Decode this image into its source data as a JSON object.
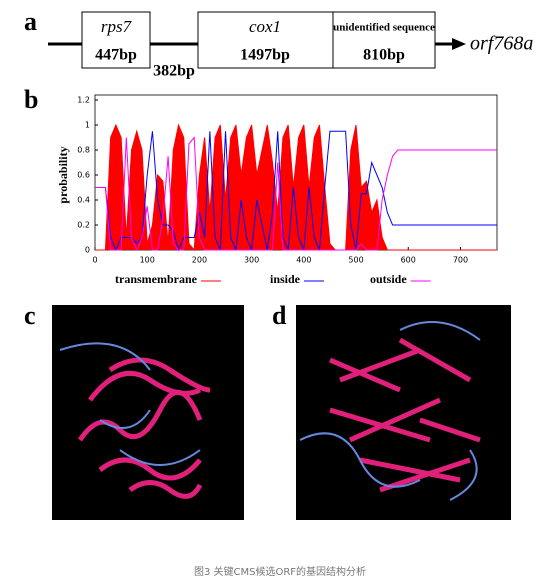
{
  "panel_labels": [
    "a",
    "b",
    "c",
    "d"
  ],
  "gene_map": {
    "genes": [
      {
        "name": "rps7",
        "length": "447bp"
      },
      {
        "name": "cox1",
        "length": "1497bp"
      },
      {
        "name": "unidentified sequence",
        "length": "810bp"
      }
    ],
    "spacer": "382bp",
    "orf": "orf768a"
  },
  "chart_data": {
    "type": "line",
    "y_label": "probability",
    "xlim": [
      0,
      770
    ],
    "ylim": [
      0,
      1.2
    ],
    "xticks": [
      0,
      100,
      200,
      300,
      400,
      500,
      600,
      700
    ],
    "yticks": [
      0,
      0.2,
      0.4,
      0.6,
      0.8,
      1,
      1.2
    ],
    "x": [
      0,
      10,
      20,
      30,
      40,
      50,
      60,
      70,
      80,
      90,
      100,
      110,
      120,
      130,
      140,
      150,
      160,
      170,
      180,
      190,
      200,
      210,
      220,
      230,
      240,
      250,
      260,
      270,
      280,
      290,
      300,
      310,
      320,
      330,
      340,
      350,
      360,
      370,
      380,
      390,
      400,
      410,
      420,
      430,
      440,
      450,
      460,
      470,
      480,
      490,
      500,
      510,
      520,
      530,
      540,
      550,
      560,
      570,
      580,
      590,
      600,
      610,
      620,
      630,
      640,
      650,
      660,
      670,
      680,
      690,
      700,
      710,
      720,
      730,
      740,
      750,
      760,
      770
    ],
    "series": [
      {
        "name": "transmembrane",
        "color": "#ff0000",
        "fill": true,
        "values": [
          0,
          0,
          0,
          0.9,
          1.0,
          0.9,
          0.1,
          0.8,
          0.95,
          0.8,
          0.05,
          0.2,
          0.6,
          0.55,
          0.05,
          0.8,
          1.0,
          0.9,
          0.05,
          0,
          0.6,
          0.9,
          0.3,
          0.9,
          1.0,
          0.4,
          0.9,
          1.0,
          0.6,
          0.9,
          1.0,
          0.6,
          0.8,
          1.0,
          0.7,
          0.3,
          0.9,
          1.0,
          0.5,
          0.9,
          1.0,
          0.5,
          0.9,
          1.0,
          0.5,
          0.05,
          0,
          0,
          0,
          0.8,
          1.0,
          0.5,
          0.55,
          0.3,
          0.4,
          0.1,
          0,
          0,
          0,
          0,
          0,
          0,
          0,
          0,
          0,
          0,
          0,
          0,
          0,
          0,
          0,
          0,
          0,
          0,
          0,
          0,
          0,
          0
        ]
      },
      {
        "name": "inside",
        "color": "#0000ff",
        "fill": false,
        "values": [
          0.5,
          0.5,
          0.5,
          0.1,
          0,
          0.1,
          0.1,
          0.1,
          0.05,
          0.1,
          0.6,
          0.95,
          0.4,
          0.2,
          0.2,
          0.15,
          0,
          0.1,
          0.1,
          0.1,
          0.3,
          0.1,
          0.95,
          0.1,
          0,
          0.95,
          0.1,
          0,
          0.4,
          0.1,
          0,
          0.4,
          0.2,
          0,
          0.3,
          0.95,
          0.1,
          0,
          0.5,
          0.1,
          0,
          0.5,
          0.1,
          0,
          0.5,
          0.95,
          0.95,
          0.95,
          0.95,
          0.2,
          0,
          0.45,
          0.45,
          0.7,
          0.6,
          0.5,
          0.3,
          0.2,
          0.2,
          0.2,
          0.2,
          0.2,
          0.2,
          0.2,
          0.2,
          0.2,
          0.2,
          0.2,
          0.2,
          0.2,
          0.2,
          0.2,
          0.2,
          0.2,
          0.2,
          0.2,
          0.2,
          0.2
        ]
      },
      {
        "name": "outside",
        "color": "#ff00ff",
        "fill": false,
        "values": [
          0.5,
          0.5,
          0.5,
          0,
          0,
          0,
          0.9,
          0.1,
          0,
          0.1,
          0.35,
          0,
          0,
          0.25,
          0.75,
          0.05,
          0,
          0,
          0.85,
          0.9,
          0.1,
          0,
          0,
          0,
          0,
          0,
          0,
          0,
          0,
          0,
          0,
          0,
          0,
          0,
          0,
          0.7,
          0,
          0,
          0,
          0,
          0,
          0,
          0,
          0,
          0,
          0,
          0,
          0,
          0,
          0,
          0,
          0.05,
          0,
          0,
          0,
          0.4,
          0.6,
          0.75,
          0.8,
          0.8,
          0.8,
          0.8,
          0.8,
          0.8,
          0.8,
          0.8,
          0.8,
          0.8,
          0.8,
          0.8,
          0.8,
          0.8,
          0.8,
          0.8,
          0.8,
          0.8,
          0.8,
          0.8
        ]
      }
    ]
  },
  "caption": "图3 关键CMS候选ORF的基因结构分析"
}
